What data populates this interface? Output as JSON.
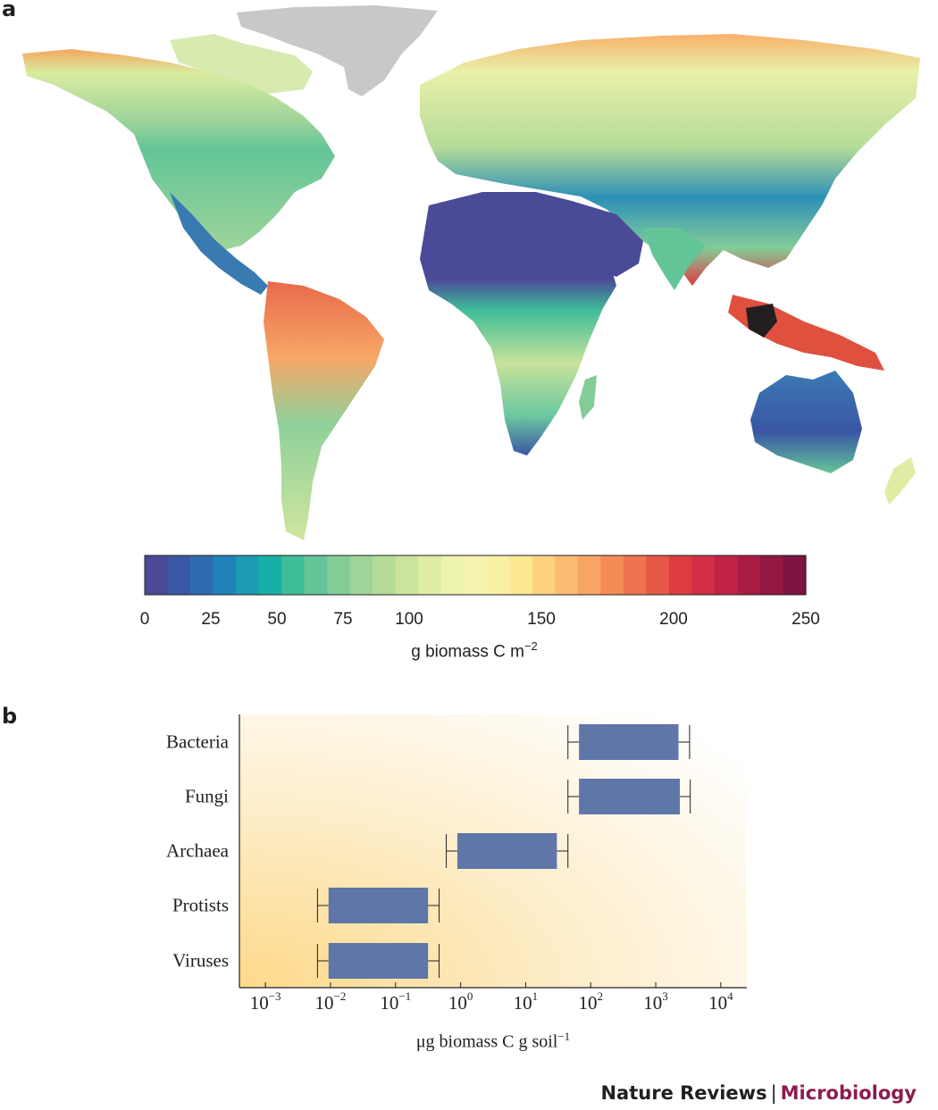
{
  "panel_labels": {
    "a": "a",
    "b": "b"
  },
  "colors": {
    "background_land": "#f0ede0",
    "greenland_gray": "#c8c8c8",
    "box_fill": "#5f76a9",
    "credit_journal": "#231f20",
    "credit_subject": "#8c1d4e"
  },
  "chart_data": [
    {
      "type": "heatmap",
      "subtype": "world-map",
      "colorbar": {
        "min": 0,
        "max": 250,
        "ticks": [
          "0",
          "25",
          "50",
          "75",
          "100",
          "150",
          "200",
          "250"
        ],
        "tick_values": [
          0,
          25,
          50,
          75,
          100,
          150,
          200,
          250
        ],
        "label_main": "g biomass C m",
        "label_sup": "−2",
        "colors": [
          "#4b4a98",
          "#3a56a4",
          "#2d6bb0",
          "#1f83b9",
          "#1b9cb4",
          "#18b0a6",
          "#3fbd98",
          "#63c598",
          "#83cc98",
          "#9ed49a",
          "#b5dc98",
          "#cbe49b",
          "#dfeda4",
          "#eef3ae",
          "#f5f3b0",
          "#faf0a4",
          "#fde891",
          "#fcd27f",
          "#fbbb72",
          "#f8a565",
          "#f48c58",
          "#ee734f",
          "#e65846",
          "#dd3c41",
          "#d22e45",
          "#c02345",
          "#a91d45",
          "#931843",
          "#7d1340"
        ]
      }
    },
    {
      "type": "box",
      "categories": [
        "Bacteria",
        "Fungi",
        "Archaea",
        "Protists",
        "Viruses"
      ],
      "xscale": "log",
      "xlim": [
        -3.4,
        4.4
      ],
      "xticks": [
        "10",
        "10",
        "10",
        "10",
        "10",
        "10",
        "10",
        "10"
      ],
      "xtick_exponents": [
        "−3",
        "−2",
        "−1",
        "0",
        "1",
        "2",
        "3",
        "4"
      ],
      "xtick_values_log10": [
        -3,
        -2,
        -1,
        0,
        1,
        2,
        3,
        4
      ],
      "xlabel_main": "μg biomass C g soil",
      "xlabel_sup": "−1",
      "boxes_log10": [
        {
          "name": "Bacteria",
          "whisker_low": 1.65,
          "q1": 1.82,
          "q3": 3.35,
          "whisker_high": 3.52
        },
        {
          "name": "Fungi",
          "whisker_low": 1.65,
          "q1": 1.82,
          "q3": 3.37,
          "whisker_high": 3.53
        },
        {
          "name": "Archaea",
          "whisker_low": -0.22,
          "q1": -0.05,
          "q3": 1.48,
          "whisker_high": 1.65
        },
        {
          "name": "Protists",
          "whisker_low": -2.2,
          "q1": -2.03,
          "q3": -0.5,
          "whisker_high": -0.33
        },
        {
          "name": "Viruses",
          "whisker_low": -2.2,
          "q1": -2.03,
          "q3": -0.5,
          "whisker_high": -0.33
        }
      ]
    }
  ],
  "credit": {
    "journal": "Nature Reviews",
    "separator": "|",
    "subject": "Microbiology"
  }
}
